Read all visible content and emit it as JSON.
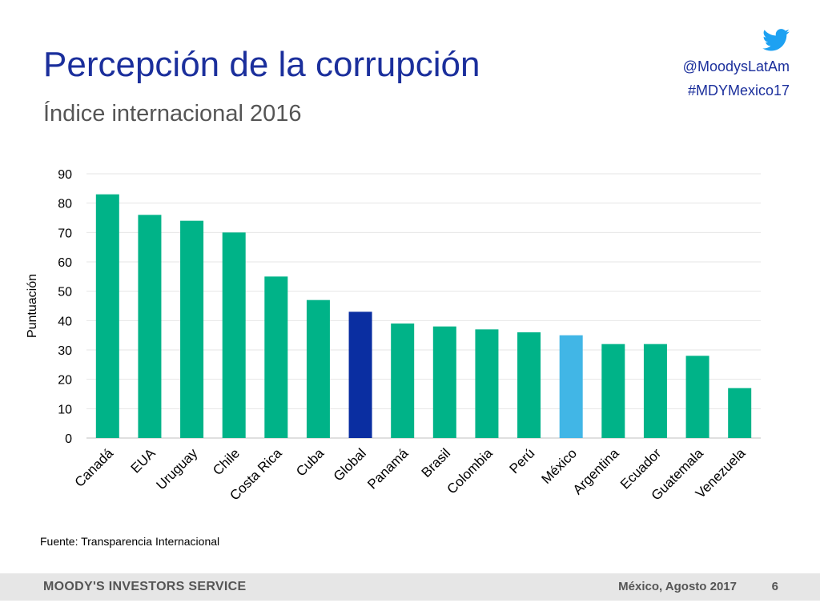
{
  "header": {
    "title": "Percepción de la corrupción",
    "subtitle": "Índice internacional 2016",
    "twitter_handle": "@MoodysLatAm",
    "hashtag": "#MDYMexico17",
    "icon": "twitter-bird-icon"
  },
  "colors": {
    "title": "#1b2f9c",
    "bar_default": "#00b388",
    "bar_global": "#0a2ea1",
    "bar_mexico": "#41b6e6",
    "twitter": "#1da1f2"
  },
  "chart_data": {
    "type": "bar",
    "categories": [
      "Canadá",
      "EUA",
      "Uruguay",
      "Chile",
      "Costa Rica",
      "Cuba",
      "Global",
      "Panamá",
      "Brasil",
      "Colombia",
      "Perú",
      "México",
      "Argentina",
      "Ecuador",
      "Guatemala",
      "Venezuela"
    ],
    "values": [
      83,
      76,
      74,
      70,
      55,
      47,
      43,
      39,
      38,
      37,
      36,
      35,
      32,
      32,
      28,
      17
    ],
    "highlight": {
      "Global": "#0a2ea1",
      "México": "#41b6e6"
    },
    "ylabel": "Puntuación",
    "xlabel": "",
    "ylim": [
      0,
      90
    ],
    "yticks": [
      0,
      10,
      20,
      30,
      40,
      50,
      60,
      70,
      80,
      90
    ],
    "grid": true,
    "legend": "none"
  },
  "source": "Fuente: Transparencia Internacional",
  "footer": {
    "brand": "MOODY'S INVESTORS SERVICE",
    "date": "México, Agosto 2017",
    "page": "6"
  }
}
